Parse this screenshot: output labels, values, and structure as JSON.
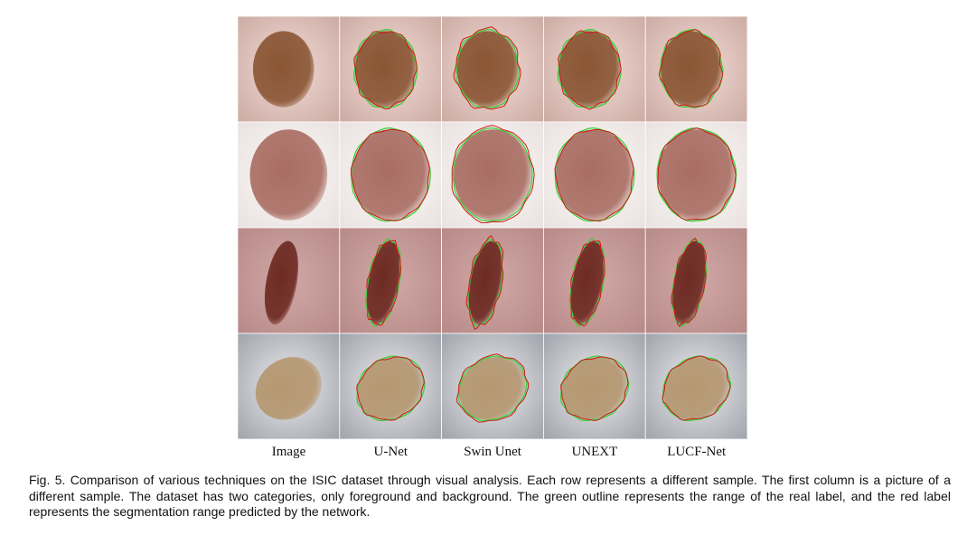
{
  "figure": {
    "columns": [
      "Image",
      "U-Net",
      "Swin Unet",
      "UNEXT",
      "LUCF-Net"
    ],
    "caption": "Fig. 5. Comparison of various techniques on the ISIC dataset through visual analysis. Each row represents a different sample. The first column is a picture of a different sample. The dataset has two categories, only foreground and background. The green outline represents the range of the real label, and the red label represents the segmentation range predicted by the network."
  }
}
